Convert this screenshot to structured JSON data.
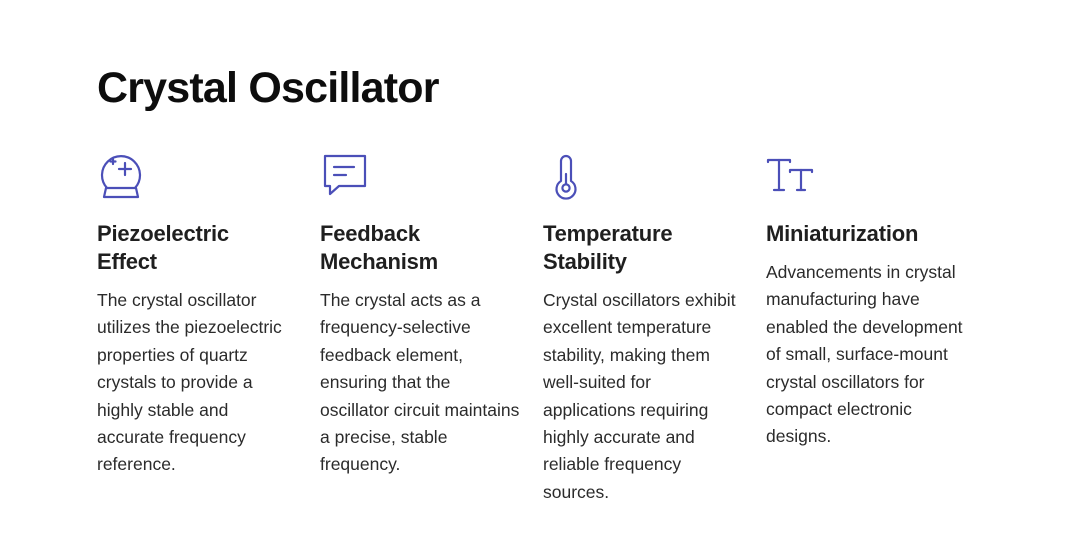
{
  "page": {
    "title": "Crystal Oscillator"
  },
  "theme": {
    "accent": "#4b4fb8",
    "text": "#2b2b2b",
    "heading": "#0d0d0d"
  },
  "features": [
    {
      "icon": "crystal-ball-icon",
      "title_line1": "Piezoelectric",
      "title_line2": "Effect",
      "text": "The crystal oscillator utilizes the piezoelectric properties of quartz crystals to provide a highly stable and accurate frequency reference."
    },
    {
      "icon": "message-icon",
      "title_line1": "Feedback",
      "title_line2": "Mechanism",
      "text": "The crystal acts as a frequency-selective feedback element, ensuring that the oscillator circuit maintains a precise, stable frequency."
    },
    {
      "icon": "thermometer-icon",
      "title_line1": "Temperature",
      "title_line2": "Stability",
      "text": "Crystal oscillators exhibit excellent temperature stability, making them well-suited for applications requiring highly accurate and reliable frequency sources."
    },
    {
      "icon": "text-size-icon",
      "title_line1": "Miniaturization",
      "title_line2": "",
      "text": "Advancements in crystal manufacturing have enabled the development of small, surface-mount crystal oscillators for compact electronic designs."
    }
  ]
}
